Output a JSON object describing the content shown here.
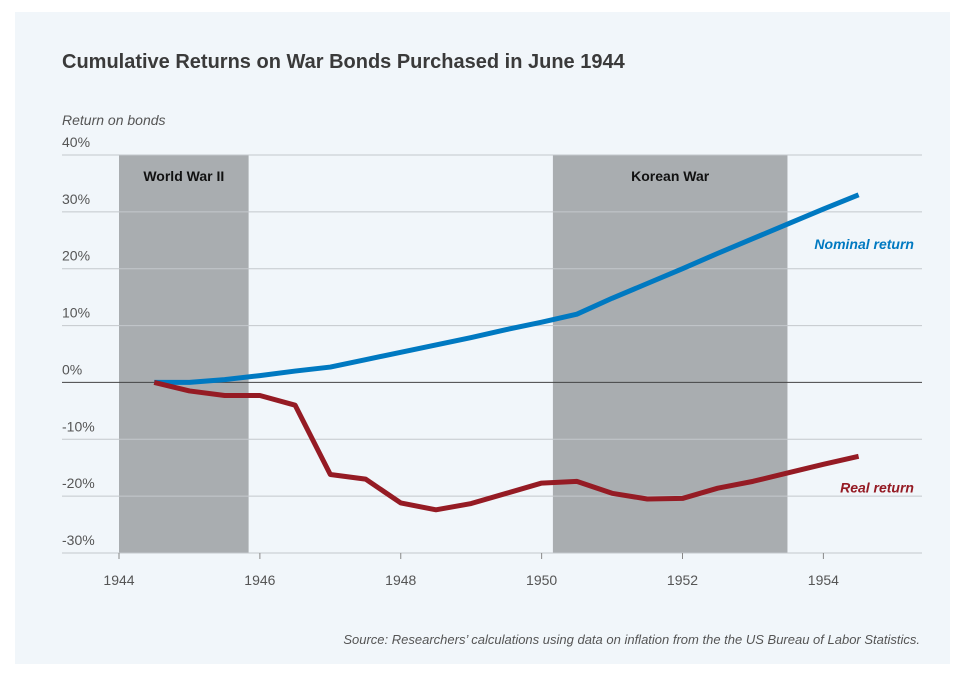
{
  "chart_data": {
    "type": "line",
    "title": "Cumulative Returns on War Bonds Purchased in June 1944",
    "y_axis_label": "Return on bonds",
    "source": "Source: Researchers’ calculations using data on inflation from the the US Bureau of Labor Statistics.",
    "x": [
      1944.5,
      1945,
      1945.5,
      1946,
      1946.5,
      1947,
      1947.5,
      1948,
      1948.5,
      1949,
      1949.5,
      1950,
      1950.5,
      1951,
      1951.5,
      1952,
      1952.5,
      1953,
      1953.5,
      1954,
      1954.5
    ],
    "series": [
      {
        "name": "Nominal return",
        "color": "#0079c1",
        "values": [
          0,
          0,
          0.5,
          1.2,
          2,
          2.7,
          4,
          5.3,
          6.6,
          7.9,
          9.3,
          10.6,
          12,
          14.8,
          17.4,
          20,
          22.7,
          25.3,
          27.9,
          30.5,
          33
        ]
      },
      {
        "name": "Real return",
        "color": "#951b24",
        "values": [
          0,
          -1.5,
          -2.3,
          -2.3,
          -4,
          -16.2,
          -17,
          -21.2,
          -22.4,
          -21.3,
          -19.5,
          -17.7,
          -17.4,
          -19.5,
          -20.5,
          -20.4,
          -18.6,
          -17.4,
          -15.9,
          -14.4,
          -13
        ]
      }
    ],
    "shaded_regions": [
      {
        "label": "World War II",
        "start": 1944,
        "end": 1945.84
      },
      {
        "label": "Korean War",
        "start": 1950.16,
        "end": 1953.49
      }
    ],
    "shade_color": "#a9adb0",
    "xlim": [
      1944,
      1955.4
    ],
    "xticks": [
      1944,
      1946,
      1948,
      1950,
      1952,
      1954
    ],
    "ylim": [
      -30,
      40
    ],
    "yticks": [
      {
        "value": -30,
        "label": "-30%"
      },
      {
        "value": -20,
        "label": "-20%"
      },
      {
        "value": -10,
        "label": "-10%"
      },
      {
        "value": 0,
        "label": "0%"
      },
      {
        "value": 10,
        "label": "10%"
      },
      {
        "value": 20,
        "label": "20%"
      },
      {
        "value": 30,
        "label": "30%"
      },
      {
        "value": 40,
        "label": "40%"
      }
    ],
    "grid": true
  }
}
